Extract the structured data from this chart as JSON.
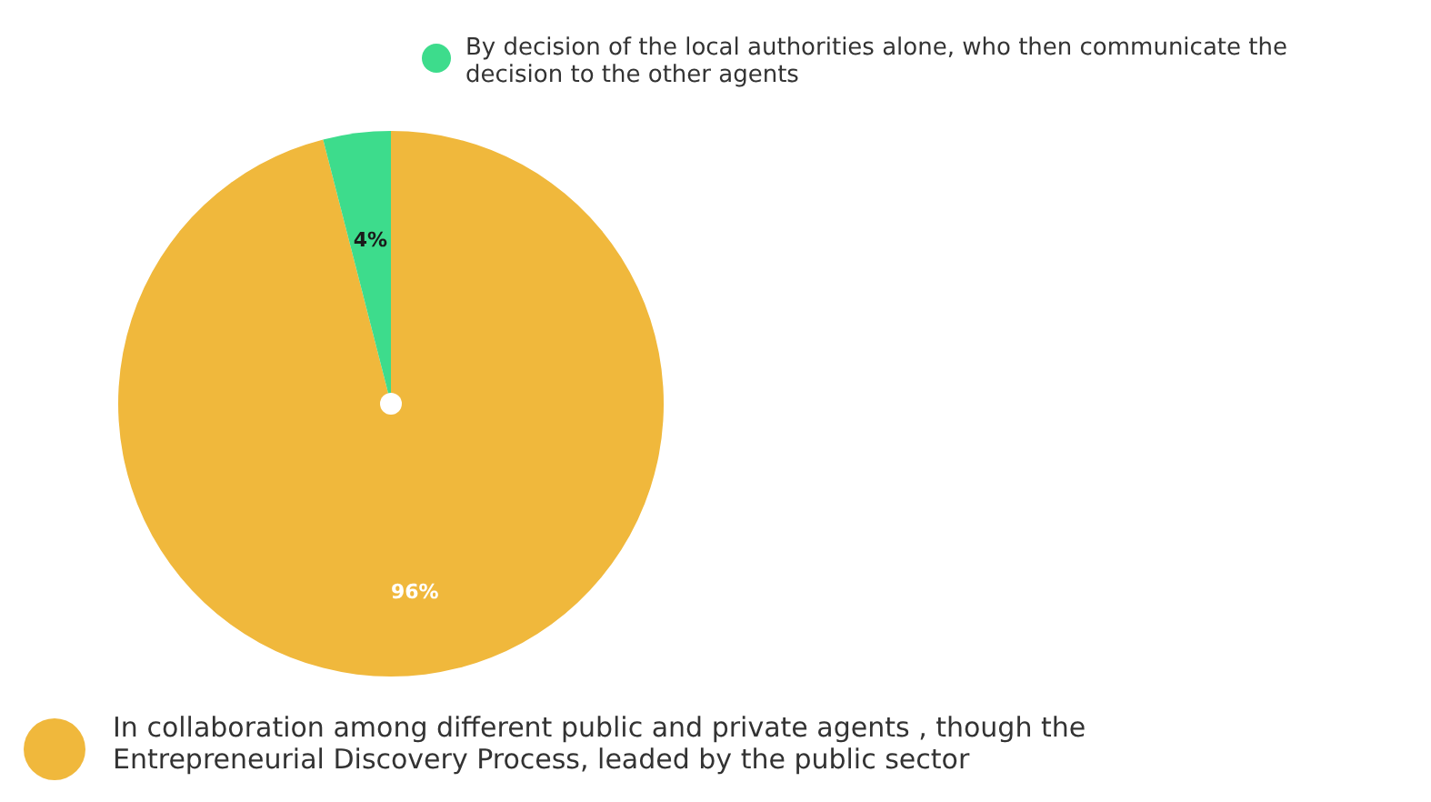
{
  "chart_data": {
    "type": "pie",
    "categories": [
      "In collaboration among different public and private agents , though the Entrepreneurial Discovery Process, leaded by the public sector",
      "By decision of the local authorities alone, who then communicate the decision to the other agents"
    ],
    "values": [
      96,
      4
    ],
    "colors": [
      "#f0b83c",
      "#3ddc8c"
    ],
    "value_labels": [
      "96%",
      "4%"
    ],
    "legend": "bottom"
  }
}
